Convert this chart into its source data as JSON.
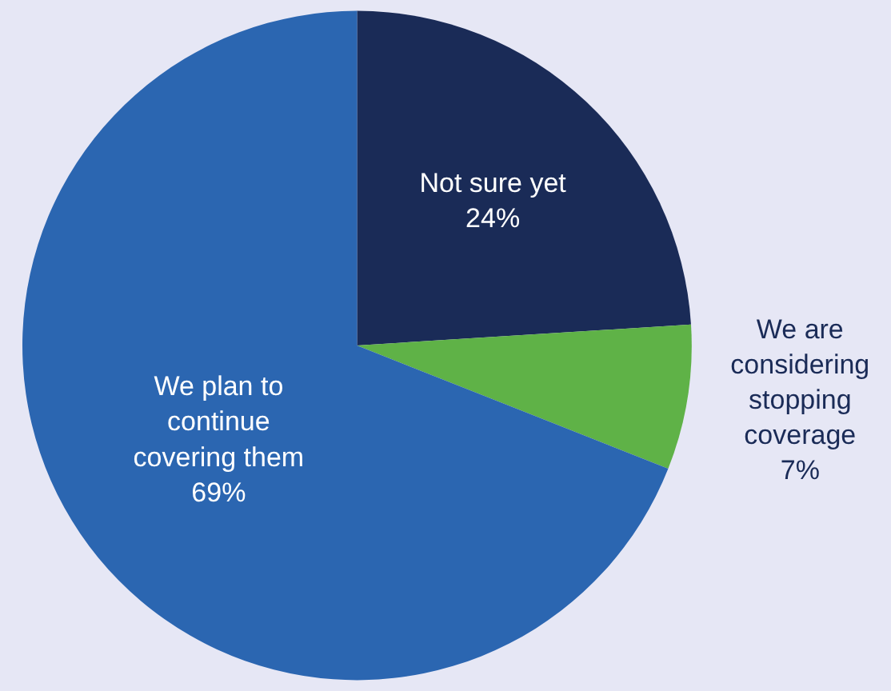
{
  "chart_data": {
    "type": "pie",
    "categories": [
      "Not sure yet",
      "We are considering stopping coverage",
      "We plan to continue covering them"
    ],
    "values": [
      24,
      7,
      69
    ],
    "colors": [
      "#1a2b57",
      "#5fb247",
      "#2b66b1"
    ],
    "value_labels": [
      "24%",
      "7%",
      "69%"
    ],
    "legend": false
  }
}
